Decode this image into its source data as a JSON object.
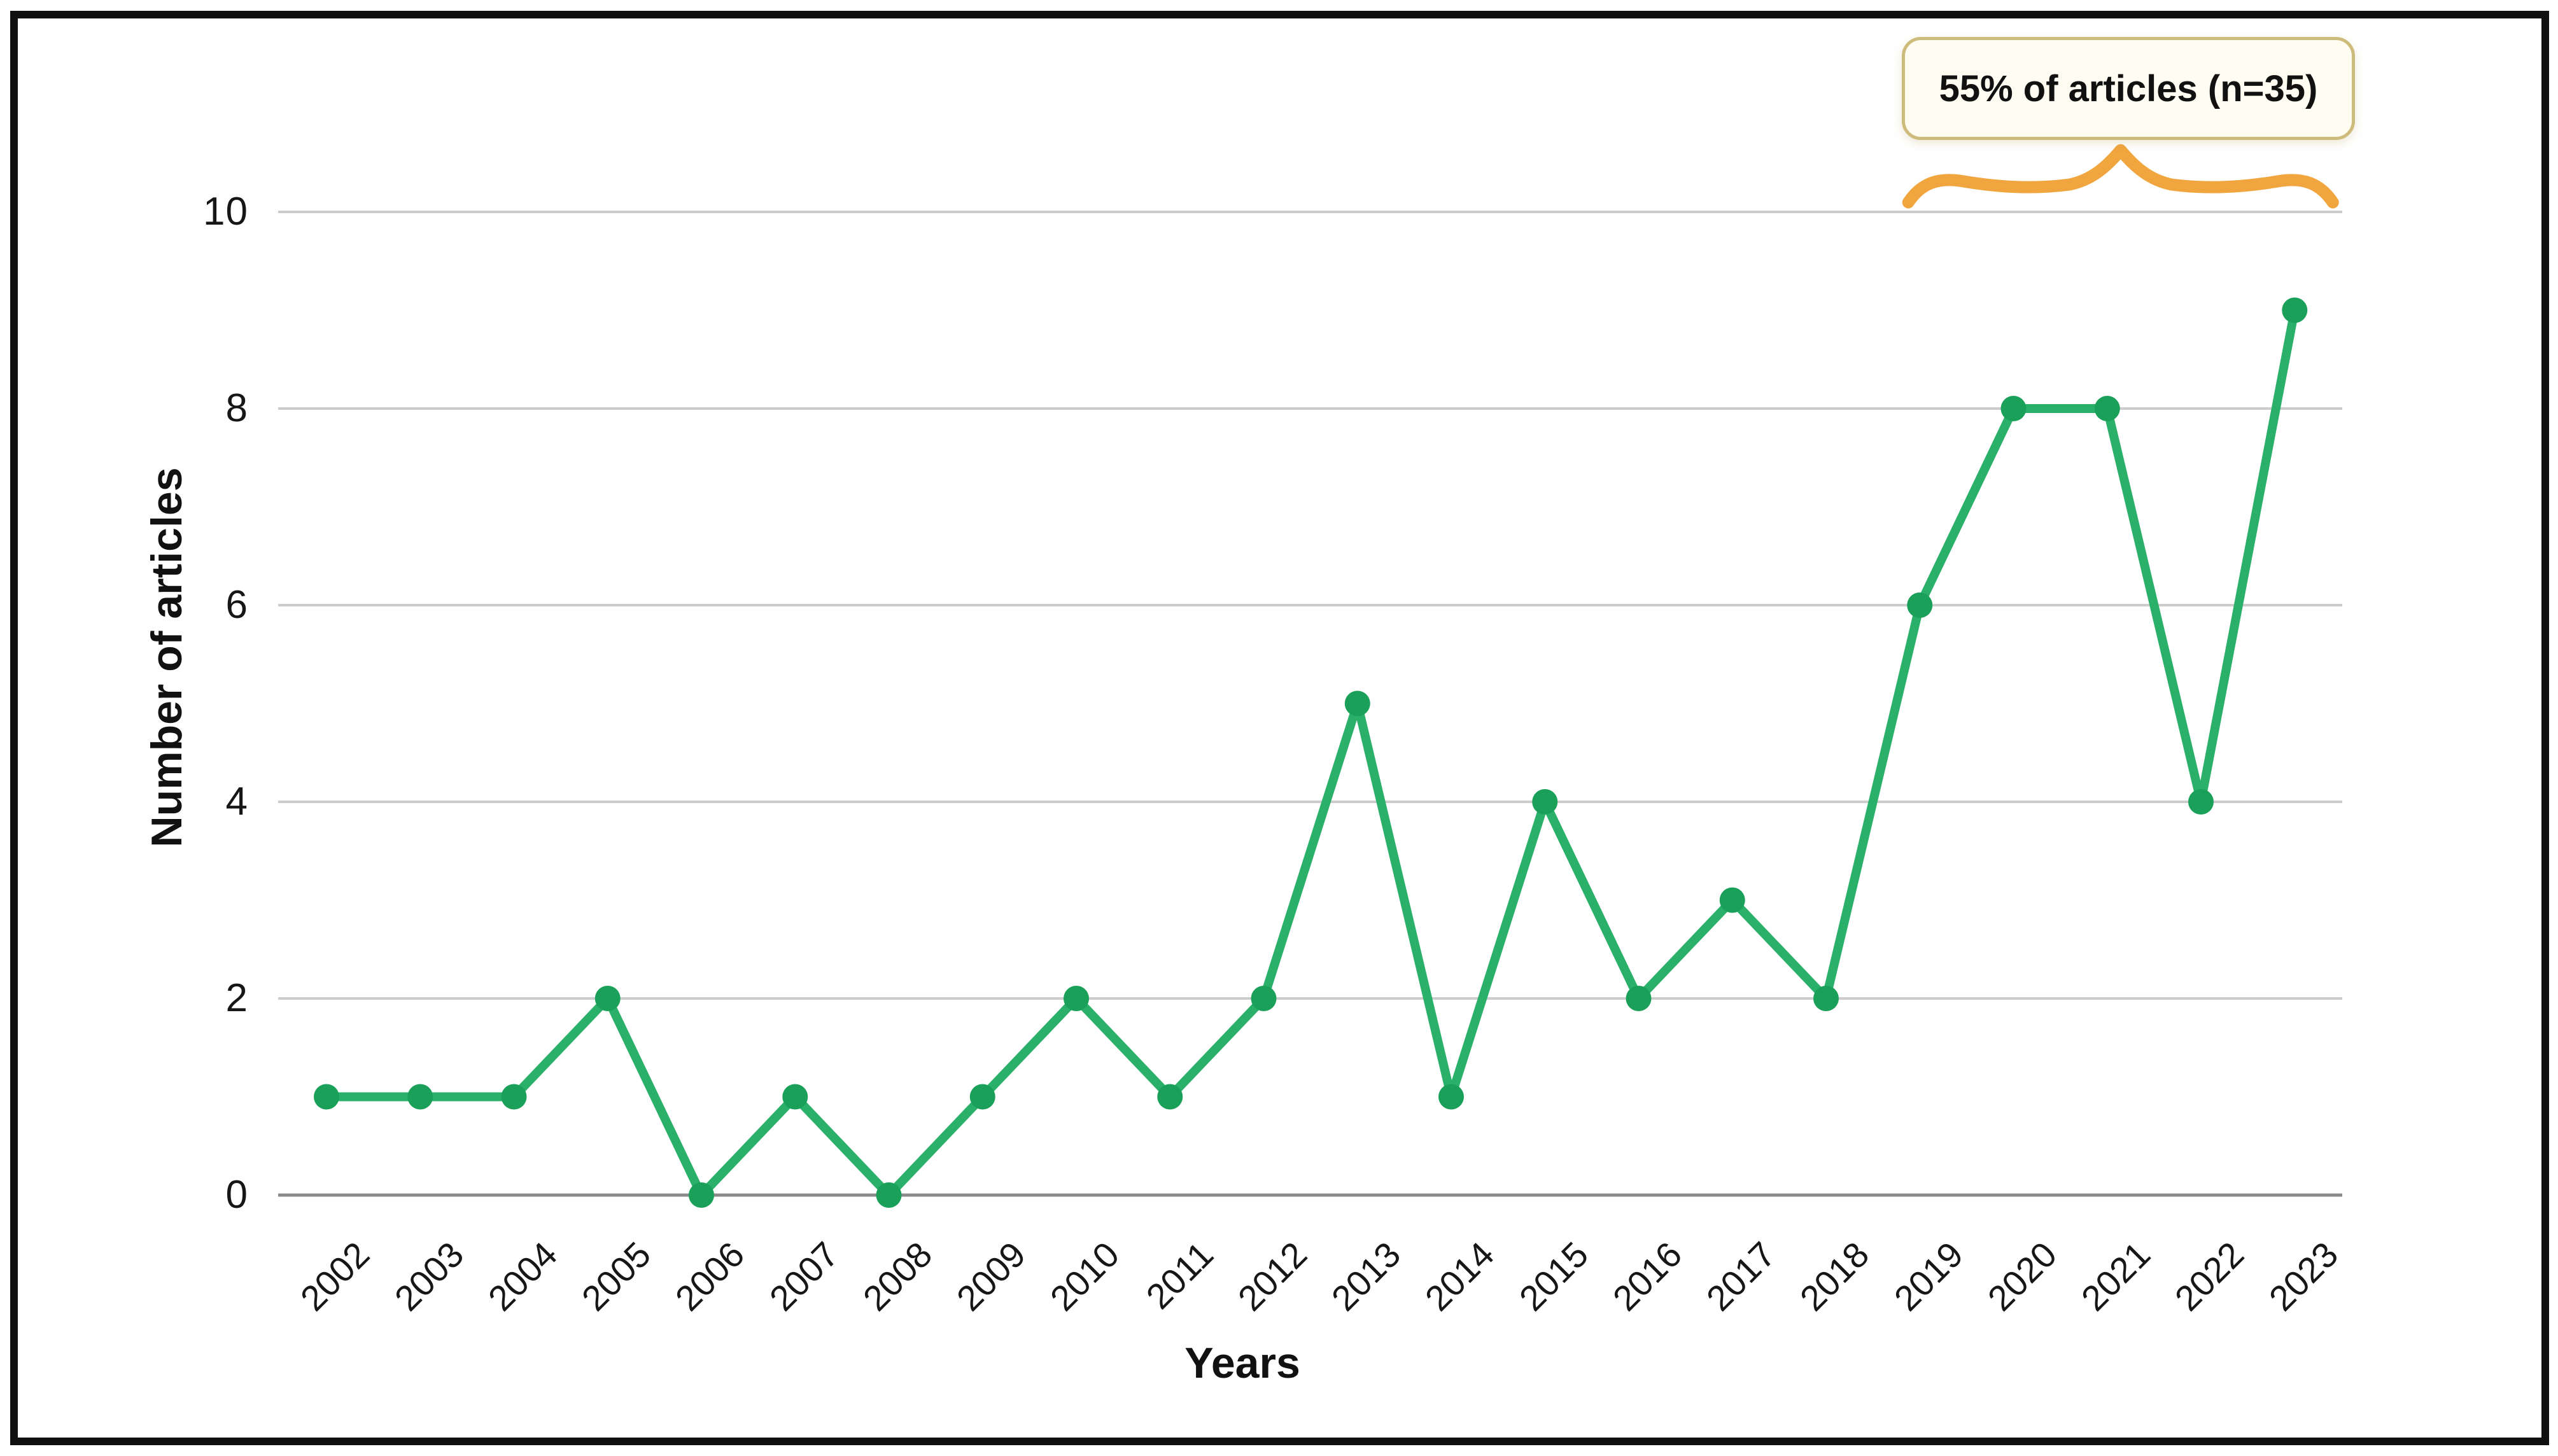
{
  "figure": {
    "frame_color": "#101010",
    "background": "#ffffff"
  },
  "chart_data": {
    "type": "line",
    "title": "",
    "xlabel": "Years",
    "ylabel": "Number of articles",
    "categories": [
      "2002",
      "2003",
      "2004",
      "2005",
      "2006",
      "2007",
      "2008",
      "2009",
      "2010",
      "2011",
      "2012",
      "2013",
      "2014",
      "2015",
      "2016",
      "2017",
      "2018",
      "2019",
      "2020",
      "2021",
      "2022",
      "2023"
    ],
    "values": [
      1,
      1,
      1,
      2,
      0,
      1,
      0,
      1,
      2,
      1,
      2,
      5,
      1,
      4,
      2,
      3,
      2,
      6,
      8,
      8,
      4,
      9
    ],
    "ylim": [
      0,
      10
    ],
    "yticks": [
      0,
      2,
      4,
      6,
      8,
      10
    ],
    "grid": "horizontal",
    "legend": "none",
    "line_color": "#2bb06a",
    "marker_color": "#1aa058",
    "gridline_color": "#cccccc",
    "axis_line_color": "#8a8a8a",
    "text_color": "#161616"
  },
  "annotation": {
    "label": "55% of articles (n=35)",
    "span_from": "2019",
    "span_to": "2023",
    "box_bg": "#fffdf2",
    "box_border_color": "#cebc7c",
    "brace_color": "#f1a53e"
  }
}
